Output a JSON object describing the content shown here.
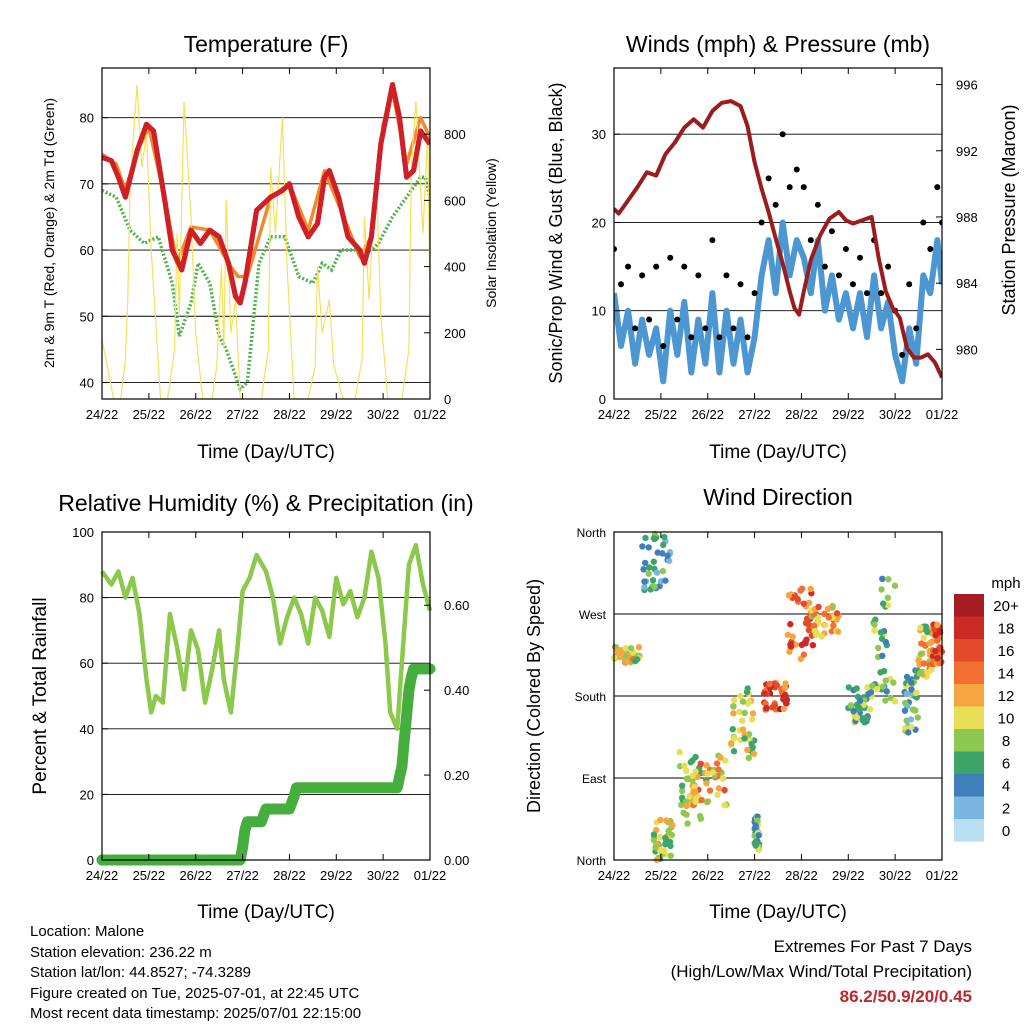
{
  "panels": {
    "temperature": {
      "title": "Temperature (F)",
      "ylabel_left": "2m & 9m T (Red, Orange) & 2m Td (Green)",
      "ylabel_right": "Solar Insolation (Yellow)",
      "xlabel": "Time (Day/UTC)"
    },
    "winds": {
      "title": "Winds (mph) & Pressure (mb)",
      "ylabel_left": "Sonic/Prop Wind & Gust (Blue, Black)",
      "ylabel_right": "Station Pressure (Maroon)",
      "xlabel": "Time (Day/UTC)"
    },
    "humidity": {
      "title": "Relative Humidity (%) & Precipitation (in)",
      "ylabel_left": "Percent & Total Rainfall",
      "xlabel": "Time (Day/UTC)"
    },
    "direction": {
      "title": "Wind Direction",
      "ylabel_left": "Direction (Colored By Speed)",
      "xlabel": "Time (Day/UTC)"
    }
  },
  "x_ticks": [
    "24/22",
    "25/22",
    "26/22",
    "27/22",
    "28/22",
    "29/22",
    "30/22",
    "01/22"
  ],
  "footer": {
    "location": "Location: Malone",
    "elevation": "Station elevation: 236.22 m",
    "latlon": "Station lat/lon: 44.8527; -74.3289",
    "created": "Figure created on Tue, 2025-07-01, at 22:45 UTC",
    "recent": "Most recent data timestamp: 2025/07/01 22:15:00"
  },
  "extremes": {
    "title": "Extremes For Past 7 Days",
    "subtitle": "(High/Low/Max Wind/Total Precipitation)",
    "values": "86.2/50.9/20/0.45"
  },
  "legend": {
    "unit": "mph",
    "labels": [
      "20+",
      "18",
      "16",
      "14",
      "12",
      "10",
      "8",
      "6",
      "4",
      "2",
      "0"
    ],
    "colors": [
      "#a51c22",
      "#cc2a27",
      "#e34a2c",
      "#f26f30",
      "#f7a540",
      "#e8de58",
      "#8dc851",
      "#3ea56a",
      "#3e7fba",
      "#7bb6e0",
      "#b9dff2"
    ]
  },
  "colors": {
    "temp2m": "#cf2027",
    "temp9m": "#f08a2a",
    "dewpoint": "#4db34a",
    "solar": "#f6e05a",
    "wind": "#4c97d2",
    "gust": "#000000",
    "pressure": "#9b1c1c",
    "rh": "#8cc84b",
    "precip": "#46ad3f"
  },
  "chart_data": [
    {
      "type": "line",
      "panel": "temperature",
      "x_unit": "days since 24/22 UTC",
      "ylim": [
        37.5,
        87.5
      ],
      "y_ticks": [
        40,
        50,
        60,
        70,
        80
      ],
      "y2lim": [
        0,
        1000
      ],
      "y2_ticks": [
        0,
        200,
        400,
        600,
        800
      ],
      "series": [
        {
          "name": "2m T",
          "color": "temp2m",
          "x": [
            0,
            0.2,
            0.35,
            0.5,
            0.75,
            0.95,
            1.1,
            1.35,
            1.5,
            1.7,
            1.9,
            2.1,
            2.3,
            2.5,
            2.7,
            2.85,
            2.95,
            3.05,
            3.3,
            3.6,
            3.85,
            4.0,
            4.2,
            4.4,
            4.6,
            4.75,
            4.85,
            5.05,
            5.25,
            5.5,
            5.6,
            5.75,
            5.95,
            6.2,
            6.35,
            6.5,
            6.65,
            6.8,
            7.0
          ],
          "y": [
            74,
            73.5,
            71,
            68,
            75,
            79,
            78,
            67,
            60,
            57,
            63,
            61,
            63,
            62,
            58,
            53,
            52,
            55,
            66,
            68,
            69,
            70,
            65,
            62,
            64,
            71,
            72,
            68,
            62,
            60,
            58,
            62,
            76,
            85,
            80,
            71,
            72,
            78,
            76
          ]
        },
        {
          "name": "9m T",
          "color": "temp9m",
          "x": [
            0,
            0.3,
            0.5,
            0.75,
            1.0,
            1.35,
            1.6,
            1.9,
            2.3,
            2.7,
            2.9,
            3.1,
            3.6,
            4.0,
            4.4,
            4.75,
            5.1,
            5.5,
            5.75,
            6.0,
            6.2,
            6.5,
            6.8,
            7.0
          ],
          "y": [
            74.5,
            73,
            69,
            75,
            78.5,
            67.5,
            58,
            63.5,
            63,
            58,
            56,
            56,
            68,
            70,
            63,
            72,
            66,
            59,
            62,
            79,
            84,
            73,
            80,
            77
          ]
        },
        {
          "name": "2m Td",
          "color": "dewpoint",
          "x": [
            0,
            0.3,
            0.6,
            0.9,
            1.2,
            1.5,
            1.65,
            1.9,
            2.05,
            2.3,
            2.5,
            2.65,
            2.8,
            2.95,
            3.1,
            3.35,
            3.6,
            3.9,
            4.2,
            4.5,
            4.7,
            4.9,
            5.1,
            5.4,
            5.6,
            5.9,
            6.2,
            6.5,
            6.8,
            6.9,
            7.0
          ],
          "y": [
            69,
            68,
            63,
            61,
            62,
            55,
            47,
            52,
            58,
            55,
            47,
            45,
            42,
            39,
            40,
            58,
            62,
            62,
            56,
            55,
            58,
            57,
            60,
            60,
            59,
            61,
            65,
            68,
            71,
            71,
            68
          ]
        },
        {
          "name": "Solar",
          "color": "solar",
          "axis": "right",
          "x": [
            0,
            0.25,
            0.4,
            0.5,
            0.55,
            0.6,
            0.75,
            0.85,
            0.95,
            1.05,
            1.25,
            1.4,
            1.55,
            1.6,
            1.65,
            1.75,
            1.9,
            2.0,
            2.15,
            2.35,
            2.45,
            2.55,
            2.6,
            2.65,
            2.75,
            2.85,
            2.95,
            3.15,
            3.4,
            3.55,
            3.6,
            3.7,
            3.85,
            3.95,
            4.1,
            4.4,
            4.55,
            4.6,
            4.7,
            4.85,
            4.95,
            5.15,
            5.4,
            5.55,
            5.6,
            5.7,
            5.85,
            5.95,
            6.1,
            6.4,
            6.55,
            6.6,
            6.7,
            6.85,
            6.95,
            7.0
          ],
          "y": [
            180,
            0,
            0,
            120,
            300,
            650,
            950,
            700,
            800,
            450,
            0,
            0,
            150,
            500,
            250,
            900,
            550,
            200,
            0,
            0,
            100,
            400,
            150,
            600,
            200,
            300,
            0,
            0,
            0,
            150,
            700,
            500,
            850,
            400,
            0,
            0,
            100,
            400,
            200,
            300,
            100,
            0,
            0,
            120,
            550,
            300,
            700,
            250,
            0,
            0,
            150,
            700,
            900,
            500,
            800,
            300
          ]
        }
      ]
    },
    {
      "type": "line",
      "panel": "winds",
      "x_unit": "days since 24/22 UTC",
      "ylim": [
        0,
        37.5
      ],
      "y_ticks": [
        0,
        10,
        20,
        30
      ],
      "y2lim": [
        977,
        997
      ],
      "y2_ticks": [
        980,
        984,
        988,
        992,
        996
      ],
      "series": [
        {
          "name": "Sonic/Prop Wind",
          "color": "wind",
          "x": [
            0,
            0.15,
            0.3,
            0.45,
            0.6,
            0.75,
            0.9,
            1.05,
            1.2,
            1.35,
            1.5,
            1.65,
            1.8,
            1.95,
            2.1,
            2.25,
            2.4,
            2.55,
            2.7,
            2.85,
            3.0,
            3.15,
            3.3,
            3.45,
            3.6,
            3.75,
            3.9,
            4.05,
            4.2,
            4.35,
            4.5,
            4.65,
            4.8,
            4.95,
            5.1,
            5.25,
            5.4,
            5.55,
            5.7,
            5.85,
            6.0,
            6.15,
            6.3,
            6.45,
            6.6,
            6.75,
            6.9,
            7.0
          ],
          "y": [
            12,
            6,
            10,
            4,
            9,
            5,
            8,
            2,
            10,
            5,
            11,
            3,
            9,
            4,
            12,
            3,
            10,
            4,
            9,
            3,
            7,
            14,
            18,
            12,
            20,
            14,
            18,
            16,
            12,
            18,
            10,
            14,
            9,
            12,
            8,
            12,
            7,
            14,
            8,
            11,
            5,
            2,
            8,
            4,
            14,
            12,
            18,
            13
          ]
        },
        {
          "name": "Gust",
          "color": "gust",
          "x": [
            0,
            0.15,
            0.3,
            0.45,
            0.6,
            0.75,
            0.9,
            1.05,
            1.2,
            1.35,
            1.5,
            1.65,
            1.8,
            1.95,
            2.1,
            2.25,
            2.4,
            2.55,
            2.7,
            2.85,
            3.0,
            3.15,
            3.3,
            3.45,
            3.6,
            3.75,
            3.9,
            4.05,
            4.2,
            4.35,
            4.5,
            4.65,
            4.8,
            4.95,
            5.1,
            5.25,
            5.4,
            5.55,
            5.7,
            5.85,
            6.0,
            6.15,
            6.3,
            6.45,
            6.6,
            6.75,
            6.9,
            7.0
          ],
          "y": [
            17,
            13,
            15,
            8,
            14,
            9,
            15,
            6,
            16,
            9,
            15,
            7,
            14,
            8,
            18,
            7,
            14,
            8,
            13,
            7,
            12,
            20,
            25,
            22,
            30,
            24,
            26,
            24,
            18,
            22,
            15,
            19,
            14,
            17,
            13,
            16,
            12,
            18,
            12,
            15,
            10,
            5,
            13,
            8,
            20,
            17,
            24,
            20
          ]
        },
        {
          "name": "Station Pressure",
          "color": "pressure",
          "axis": "right",
          "x": [
            0,
            0.1,
            0.3,
            0.5,
            0.7,
            0.9,
            1.1,
            1.3,
            1.5,
            1.7,
            1.9,
            2.1,
            2.3,
            2.5,
            2.7,
            2.85,
            3.0,
            3.15,
            3.3,
            3.45,
            3.6,
            3.75,
            3.85,
            3.95,
            4.05,
            4.2,
            4.4,
            4.6,
            4.8,
            4.95,
            5.1,
            5.3,
            5.5,
            5.65,
            5.8,
            5.95,
            6.1,
            6.25,
            6.4,
            6.55,
            6.7,
            6.85,
            7.0
          ],
          "y": [
            988.5,
            988.2,
            989,
            989.8,
            990.7,
            990.5,
            991.8,
            992.5,
            993.4,
            993.9,
            993.4,
            994.4,
            994.9,
            995,
            994.7,
            993.5,
            991.3,
            989.7,
            988.3,
            986.7,
            985.2,
            983.5,
            982.5,
            982.1,
            983.5,
            985.4,
            986.9,
            987.9,
            988.3,
            987.8,
            987.6,
            987.8,
            988,
            985.5,
            983.5,
            982.5,
            981.9,
            980.1,
            979.5,
            979.5,
            979.7,
            979.2,
            978.3
          ]
        }
      ]
    },
    {
      "type": "line",
      "panel": "humidity",
      "x_unit": "days since 24/22 UTC",
      "ylim": [
        0,
        100
      ],
      "y_ticks": [
        0,
        20,
        40,
        60,
        80,
        100
      ],
      "y2lim": [
        0,
        0.7725
      ],
      "y2_ticks": [
        "0.00",
        "0.20",
        "0.40",
        "0.60"
      ],
      "series": [
        {
          "name": "Relative Humidity",
          "color": "rh",
          "x": [
            0,
            0.2,
            0.35,
            0.5,
            0.65,
            0.8,
            0.95,
            1.05,
            1.15,
            1.3,
            1.45,
            1.6,
            1.75,
            1.9,
            2.05,
            2.2,
            2.35,
            2.5,
            2.6,
            2.75,
            2.9,
            3.0,
            3.15,
            3.3,
            3.5,
            3.65,
            3.8,
            3.95,
            4.1,
            4.25,
            4.4,
            4.55,
            4.7,
            4.85,
            5.0,
            5.15,
            5.3,
            5.45,
            5.6,
            5.75,
            5.9,
            6.05,
            6.15,
            6.3,
            6.45,
            6.55,
            6.7,
            6.85,
            7.0
          ],
          "y": [
            88,
            84,
            88,
            80,
            86,
            75,
            55,
            45,
            50,
            48,
            75,
            65,
            52,
            70,
            64,
            48,
            58,
            70,
            55,
            45,
            66,
            82,
            86,
            93,
            88,
            80,
            66,
            74,
            80,
            75,
            66,
            80,
            76,
            68,
            86,
            78,
            82,
            74,
            80,
            94,
            86,
            66,
            45,
            40,
            70,
            90,
            96,
            84,
            76
          ]
        },
        {
          "name": "Total Rainfall",
          "color": "precip",
          "axis": "right",
          "x": [
            0,
            1.0,
            2.0,
            2.95,
            3.0,
            3.05,
            3.1,
            3.4,
            3.5,
            3.55,
            4.0,
            4.1,
            4.15,
            5.0,
            6.0,
            6.3,
            6.4,
            6.45,
            6.5,
            6.55,
            6.6,
            6.65,
            6.7,
            7.0
          ],
          "y": [
            0,
            0,
            0,
            0,
            0.03,
            0.07,
            0.09,
            0.09,
            0.12,
            0.12,
            0.12,
            0.15,
            0.17,
            0.17,
            0.17,
            0.17,
            0.22,
            0.28,
            0.34,
            0.4,
            0.43,
            0.45,
            0.45,
            0.45
          ]
        }
      ]
    },
    {
      "type": "scatter",
      "panel": "direction",
      "x_unit": "days since 24/22 UTC",
      "y_unit": "degrees (0 = North, 90 = East, 180 = South, 270 = West, 360 = North)",
      "y_ticks": [
        "North",
        "East",
        "South",
        "West",
        "North"
      ],
      "ylim": [
        0,
        360
      ],
      "color_by": "speed (mph)",
      "clusters": [
        {
          "x": [
            0,
            0.55
          ],
          "y": [
            215,
            235
          ],
          "speed": 10
        },
        {
          "x": [
            0.6,
            1.2
          ],
          "y": [
            295,
            360
          ],
          "speed": 5
        },
        {
          "x": [
            0.85,
            1.25
          ],
          "y": [
            0,
            45
          ],
          "speed": 9
        },
        {
          "x": [
            1.4,
            2.0
          ],
          "y": [
            40,
            120
          ],
          "speed": 9
        },
        {
          "x": [
            1.6,
            2.4
          ],
          "y": [
            60,
            115
          ],
          "speed": 12
        },
        {
          "x": [
            2.5,
            3.0
          ],
          "y": [
            110,
            190
          ],
          "speed": 9
        },
        {
          "x": [
            3.0,
            3.1
          ],
          "y": [
            10,
            50
          ],
          "speed": 7
        },
        {
          "x": [
            3.2,
            3.7
          ],
          "y": [
            165,
            195
          ],
          "speed": 16
        },
        {
          "x": [
            3.7,
            4.3
          ],
          "y": [
            220,
            300
          ],
          "speed": 15
        },
        {
          "x": [
            4.2,
            4.8
          ],
          "y": [
            245,
            280
          ],
          "speed": 12
        },
        {
          "x": [
            5.0,
            5.5
          ],
          "y": [
            150,
            190
          ],
          "speed": 7
        },
        {
          "x": [
            5.5,
            6.0
          ],
          "y": [
            170,
            310
          ],
          "speed": 7
        },
        {
          "x": [
            6.2,
            6.5
          ],
          "y": [
            140,
            210
          ],
          "speed": 6
        },
        {
          "x": [
            6.5,
            6.8
          ],
          "y": [
            200,
            260
          ],
          "speed": 10
        },
        {
          "x": [
            6.8,
            7.0
          ],
          "y": [
            215,
            260
          ],
          "speed": 15
        }
      ]
    }
  ]
}
